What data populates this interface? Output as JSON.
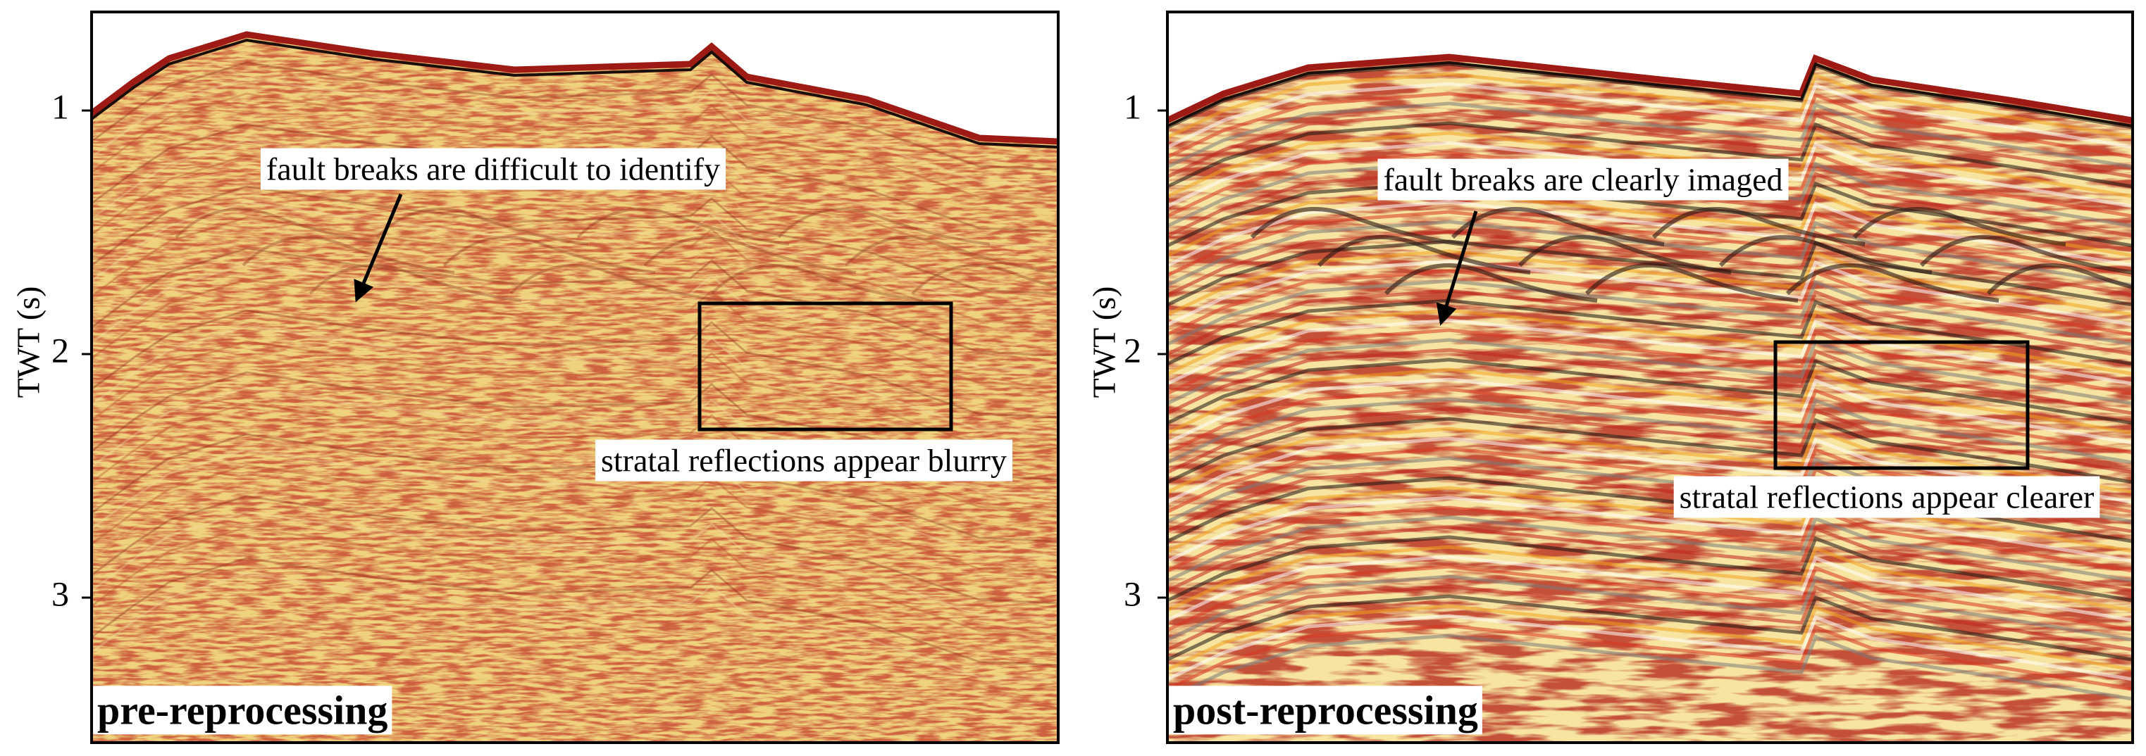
{
  "panels": [
    {
      "label": "pre-reprocessing",
      "axis_label": "TWT (s)",
      "yticks": [
        1,
        2,
        3
      ],
      "annotations": [
        {
          "text": "fault breaks are difficult to identify"
        },
        {
          "text": "stratal reflections appear blurry"
        }
      ]
    },
    {
      "label": "post-reprocessing",
      "axis_label": "TWT (s)",
      "yticks": [
        1,
        2,
        3
      ],
      "annotations": [
        {
          "text": "fault breaks are clearly imaged"
        },
        {
          "text": "stratal reflections appear clearer"
        }
      ]
    }
  ]
}
